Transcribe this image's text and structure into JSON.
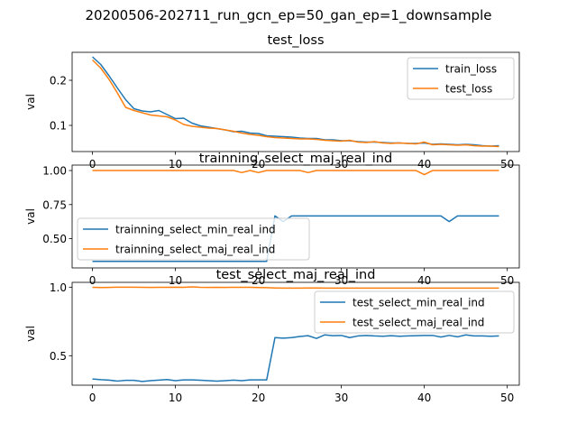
{
  "figure_title": "20200506-202711_run_gcn_ep=50_gan_ep=1_downsample",
  "colors": {
    "series1": "#1f77b4",
    "series2": "#ff7f0e"
  },
  "chart_data": [
    {
      "type": "line",
      "title": "test_loss",
      "xlabel": "",
      "ylabel": "val",
      "xlim": [
        -2.45,
        51.45
      ],
      "ylim": [
        0.042,
        0.262
      ],
      "xticks": [
        0,
        10,
        20,
        30,
        40,
        50
      ],
      "yticks": [
        0.1,
        0.2
      ],
      "ytick_labels": [
        "0.1",
        "0.2"
      ],
      "legend": "upper-right",
      "x": [
        0,
        1,
        2,
        3,
        4,
        5,
        6,
        7,
        8,
        9,
        10,
        11,
        12,
        13,
        14,
        15,
        16,
        17,
        18,
        19,
        20,
        21,
        22,
        23,
        24,
        25,
        26,
        27,
        28,
        29,
        30,
        31,
        32,
        33,
        34,
        35,
        36,
        37,
        38,
        39,
        40,
        41,
        42,
        43,
        44,
        45,
        46,
        47,
        48,
        49
      ],
      "series": [
        {
          "name": "train_loss",
          "color": "#1f77b4",
          "values": [
            0.252,
            0.235,
            0.21,
            0.183,
            0.157,
            0.137,
            0.132,
            0.13,
            0.133,
            0.124,
            0.115,
            0.116,
            0.105,
            0.099,
            0.096,
            0.093,
            0.09,
            0.086,
            0.087,
            0.083,
            0.082,
            0.077,
            0.076,
            0.075,
            0.074,
            0.072,
            0.071,
            0.071,
            0.068,
            0.068,
            0.066,
            0.066,
            0.064,
            0.063,
            0.063,
            0.062,
            0.061,
            0.061,
            0.06,
            0.06,
            0.061,
            0.058,
            0.059,
            0.058,
            0.057,
            0.058,
            0.057,
            0.055,
            0.054,
            0.055
          ]
        },
        {
          "name": "test_loss",
          "color": "#ff7f0e",
          "values": [
            0.245,
            0.227,
            0.202,
            0.172,
            0.14,
            0.133,
            0.128,
            0.123,
            0.121,
            0.119,
            0.112,
            0.102,
            0.098,
            0.096,
            0.094,
            0.093,
            0.09,
            0.087,
            0.083,
            0.08,
            0.078,
            0.075,
            0.073,
            0.072,
            0.071,
            0.07,
            0.07,
            0.069,
            0.067,
            0.066,
            0.065,
            0.067,
            0.063,
            0.062,
            0.064,
            0.061,
            0.06,
            0.061,
            0.06,
            0.059,
            0.063,
            0.057,
            0.058,
            0.057,
            0.056,
            0.057,
            0.055,
            0.054,
            0.054,
            0.053
          ]
        }
      ]
    },
    {
      "type": "line",
      "title": "trainning_select_maj_real_ind",
      "xlabel": "",
      "ylabel": "val",
      "xlim": [
        -2.45,
        51.45
      ],
      "ylim": [
        0.285,
        1.04
      ],
      "xticks": [
        0,
        10,
        20,
        30,
        40,
        50
      ],
      "yticks": [
        0.5,
        0.75,
        1.0
      ],
      "ytick_labels": [
        "0.50",
        "0.75",
        "1.00"
      ],
      "legend": "lower-left",
      "x": [
        0,
        1,
        2,
        3,
        4,
        5,
        6,
        7,
        8,
        9,
        10,
        11,
        12,
        13,
        14,
        15,
        16,
        17,
        18,
        19,
        20,
        21,
        22,
        23,
        24,
        25,
        26,
        27,
        28,
        29,
        30,
        31,
        32,
        33,
        34,
        35,
        36,
        37,
        38,
        39,
        40,
        41,
        42,
        43,
        44,
        45,
        46,
        47,
        48,
        49
      ],
      "series": [
        {
          "name": "trainning_select_min_real_ind",
          "color": "#1f77b4",
          "values": [
            0.333,
            0.333,
            0.333,
            0.333,
            0.333,
            0.333,
            0.333,
            0.333,
            0.333,
            0.333,
            0.333,
            0.333,
            0.333,
            0.333,
            0.333,
            0.333,
            0.333,
            0.333,
            0.333,
            0.333,
            0.333,
            0.333,
            0.667,
            0.625,
            0.667,
            0.667,
            0.667,
            0.667,
            0.667,
            0.667,
            0.667,
            0.667,
            0.667,
            0.667,
            0.667,
            0.667,
            0.667,
            0.667,
            0.667,
            0.667,
            0.667,
            0.667,
            0.667,
            0.625,
            0.667,
            0.667,
            0.667,
            0.667,
            0.667,
            0.667
          ]
        },
        {
          "name": "trainning_select_maj_real_ind",
          "color": "#ff7f0e",
          "values": [
            1.0,
            1.0,
            1.0,
            1.0,
            1.0,
            1.0,
            1.0,
            1.0,
            1.0,
            1.0,
            1.0,
            1.0,
            1.0,
            1.0,
            1.0,
            1.0,
            1.0,
            1.0,
            0.985,
            1.0,
            0.985,
            1.0,
            1.0,
            1.0,
            1.0,
            1.0,
            0.985,
            1.0,
            1.0,
            1.0,
            1.0,
            1.0,
            1.0,
            1.0,
            1.0,
            1.0,
            1.0,
            1.0,
            1.0,
            1.0,
            0.97,
            1.0,
            1.0,
            1.0,
            1.0,
            1.0,
            1.0,
            1.0,
            1.0,
            1.0
          ]
        }
      ]
    },
    {
      "type": "line",
      "title": "test_select_maj_real_ind",
      "xlabel": "",
      "ylabel": "val",
      "xlim": [
        -2.45,
        51.45
      ],
      "ylim": [
        0.285,
        1.035
      ],
      "xticks": [
        0,
        10,
        20,
        30,
        40,
        50
      ],
      "yticks": [
        0.5,
        1.0
      ],
      "ytick_labels": [
        "0.5",
        "1.0"
      ],
      "legend": "upper-right",
      "x": [
        0,
        1,
        2,
        3,
        4,
        5,
        6,
        7,
        8,
        9,
        10,
        11,
        12,
        13,
        14,
        15,
        16,
        17,
        18,
        19,
        20,
        21,
        22,
        23,
        24,
        25,
        26,
        27,
        28,
        29,
        30,
        31,
        32,
        33,
        34,
        35,
        36,
        37,
        38,
        39,
        40,
        41,
        42,
        43,
        44,
        45,
        46,
        47,
        48,
        49
      ],
      "series": [
        {
          "name": "test_select_min_real_ind",
          "color": "#1f77b4",
          "values": [
            0.33,
            0.325,
            0.322,
            0.315,
            0.32,
            0.32,
            0.312,
            0.318,
            0.322,
            0.326,
            0.318,
            0.324,
            0.324,
            0.321,
            0.318,
            0.315,
            0.318,
            0.322,
            0.318,
            0.324,
            0.324,
            0.324,
            0.632,
            0.628,
            0.632,
            0.64,
            0.646,
            0.626,
            0.652,
            0.646,
            0.648,
            0.632,
            0.644,
            0.648,
            0.644,
            0.642,
            0.646,
            0.642,
            0.644,
            0.646,
            0.648,
            0.648,
            0.636,
            0.648,
            0.638,
            0.652,
            0.644,
            0.644,
            0.642,
            0.644
          ]
        },
        {
          "name": "test_select_maj_real_ind",
          "color": "#ff7f0e",
          "values": [
            0.999,
            0.997,
            0.998,
            1.0,
            1.0,
            1.0,
            0.999,
            0.998,
            0.999,
            0.999,
            1.0,
            0.999,
            1.002,
            0.999,
            0.998,
            0.999,
            0.998,
            0.999,
            0.999,
            0.999,
            0.997,
            0.996,
            0.994,
            0.993,
            0.993,
            0.993,
            0.994,
            0.994,
            0.993,
            0.993,
            0.993,
            0.993,
            0.993,
            0.993,
            0.993,
            0.993,
            0.993,
            0.993,
            0.993,
            0.993,
            0.993,
            0.993,
            0.993,
            0.993,
            0.993,
            0.993,
            0.993,
            0.993,
            0.993,
            0.993
          ]
        }
      ]
    }
  ]
}
